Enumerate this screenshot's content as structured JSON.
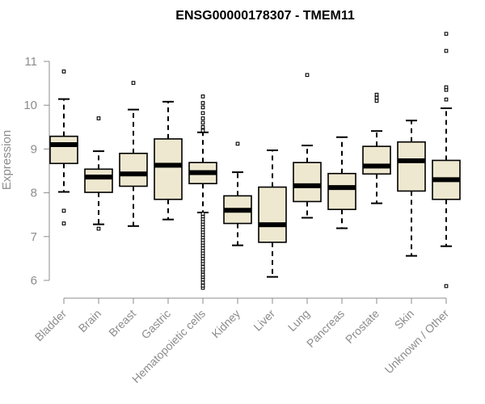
{
  "chart_data": {
    "type": "boxplot",
    "title": "ENSG00000178307 - TMEM11",
    "xlabel": "",
    "ylabel": "Expression",
    "ylim": [
      5.75,
      11.65
    ],
    "yticks": [
      6,
      7,
      8,
      9,
      10,
      11
    ],
    "categories": [
      "Bladder",
      "Brain",
      "Breast",
      "Gastric",
      "Hematopoietic cells",
      "Kidney",
      "Liver",
      "Lung",
      "Pancreas",
      "Prostate",
      "Skin",
      "Unknown / Other"
    ],
    "boxes": [
      {
        "name": "Bladder",
        "whisker_low": 8.02,
        "q1": 8.67,
        "median": 9.1,
        "q3": 9.29,
        "whisker_high": 10.14,
        "outliers": [
          7.3,
          7.59,
          10.77
        ]
      },
      {
        "name": "Brain",
        "whisker_low": 7.28,
        "q1": 8.01,
        "median": 8.36,
        "q3": 8.54,
        "whisker_high": 8.95,
        "outliers": [
          7.18,
          9.7
        ]
      },
      {
        "name": "Breast",
        "whisker_low": 7.24,
        "q1": 8.15,
        "median": 8.43,
        "q3": 8.9,
        "whisker_high": 9.9,
        "outliers": [
          10.51
        ]
      },
      {
        "name": "Gastric",
        "whisker_low": 7.39,
        "q1": 7.85,
        "median": 8.63,
        "q3": 9.23,
        "whisker_high": 10.08,
        "outliers": []
      },
      {
        "name": "Hematopoietic cells",
        "whisker_low": 7.55,
        "q1": 8.21,
        "median": 8.46,
        "q3": 8.69,
        "whisker_high": 9.38,
        "outliers": [
          5.83,
          5.88,
          5.95,
          6.02,
          6.08,
          6.13,
          6.2,
          6.25,
          6.31,
          6.38,
          6.44,
          6.5,
          6.56,
          6.62,
          6.68,
          6.74,
          6.8,
          6.86,
          6.92,
          6.98,
          7.04,
          7.1,
          7.16,
          7.22,
          7.28,
          7.34,
          7.4,
          7.46,
          7.52,
          9.42,
          9.5,
          9.6,
          9.7,
          9.82,
          9.95,
          10.05,
          10.2
        ]
      },
      {
        "name": "Kidney",
        "whisker_low": 6.8,
        "q1": 7.3,
        "median": 7.6,
        "q3": 7.93,
        "whisker_high": 8.47,
        "outliers": [
          9.12
        ]
      },
      {
        "name": "Liver",
        "whisker_low": 6.08,
        "q1": 6.87,
        "median": 7.27,
        "q3": 8.13,
        "whisker_high": 8.97,
        "outliers": []
      },
      {
        "name": "Lung",
        "whisker_low": 7.43,
        "q1": 7.8,
        "median": 8.16,
        "q3": 8.69,
        "whisker_high": 9.08,
        "outliers": [
          10.69
        ]
      },
      {
        "name": "Pancreas",
        "whisker_low": 7.19,
        "q1": 7.62,
        "median": 8.12,
        "q3": 8.44,
        "whisker_high": 9.27,
        "outliers": []
      },
      {
        "name": "Prostate",
        "whisker_low": 7.76,
        "q1": 8.43,
        "median": 8.61,
        "q3": 9.06,
        "whisker_high": 9.41,
        "outliers": [
          10.1,
          10.17,
          10.24
        ]
      },
      {
        "name": "Skin",
        "whisker_low": 6.56,
        "q1": 8.04,
        "median": 8.73,
        "q3": 9.16,
        "whisker_high": 9.65,
        "outliers": []
      },
      {
        "name": "Unknown / Other",
        "whisker_low": 6.78,
        "q1": 7.85,
        "median": 8.3,
        "q3": 8.74,
        "whisker_high": 9.93,
        "outliers": [
          5.87,
          10.13,
          10.35,
          10.41,
          11.24,
          11.63
        ]
      }
    ]
  },
  "colors": {
    "box_fill": "#eee8d0",
    "stroke": "#000000",
    "axis": "#8c8c8c",
    "title": "#000000"
  }
}
